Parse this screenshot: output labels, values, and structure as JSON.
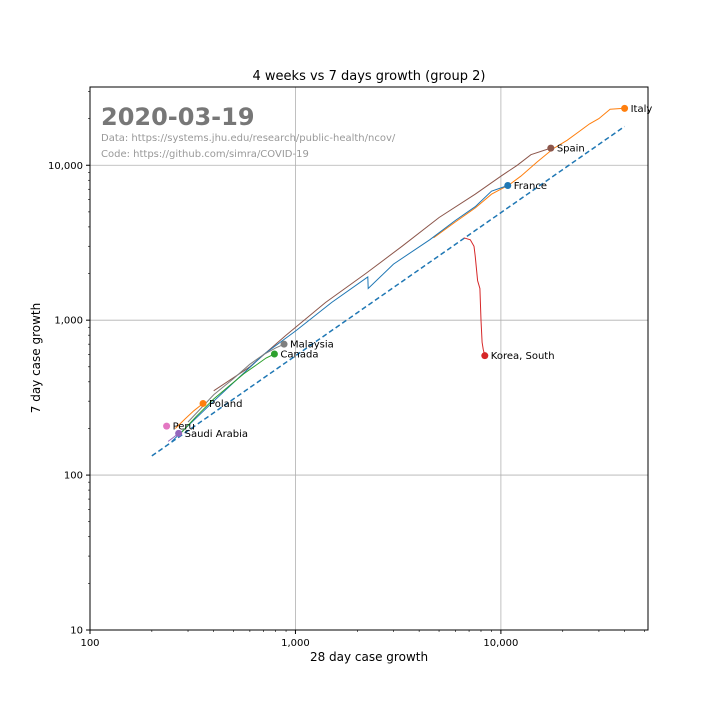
{
  "chart_data": {
    "type": "line",
    "title": "4 weeks vs 7 days growth (group 2)",
    "xlabel": "28 day case growth",
    "ylabel": "7 day case growth",
    "xscale": "log",
    "yscale": "log",
    "xlim": [
      100,
      52000
    ],
    "ylim": [
      10,
      32000
    ],
    "x_ticks": [
      100,
      1000,
      10000
    ],
    "x_tick_labels": [
      "100",
      "1,000",
      "10,000"
    ],
    "y_ticks": [
      10,
      100,
      1000,
      10000
    ],
    "y_tick_labels": [
      "10",
      "100",
      "1,000",
      "10,000"
    ],
    "grid": true,
    "legend": "none",
    "annotation_date": "2020-03-19",
    "annotation_lines": [
      "Data: https://systems.jhu.edu/research/public-health/ncov/",
      "Code: https://github.com/simra/COVID-19"
    ],
    "reference_line": {
      "style": "dashed",
      "color": "#1f77b4",
      "x": [
        200,
        40000
      ],
      "y": [
        133,
        17800
      ]
    },
    "series": [
      {
        "name": "Italy",
        "color": "#ff7f0e",
        "x": [
          4700,
          6000,
          7500,
          9000,
          11000,
          12500,
          15000,
          18000,
          21000,
          24000,
          27000,
          30000,
          34000,
          40000
        ],
        "y": [
          3400,
          4300,
          5300,
          6500,
          7500,
          8500,
          10500,
          12800,
          14500,
          16500,
          18500,
          20000,
          23000,
          23300
        ]
      },
      {
        "name": "Spain",
        "color": "#8c564b",
        "x": [
          400,
          600,
          900,
          1400,
          2200,
          3300,
          5000,
          7500,
          10000,
          12000,
          14000,
          17500
        ],
        "y": [
          350,
          500,
          800,
          1300,
          2000,
          3000,
          4600,
          6500,
          8500,
          10000,
          11700,
          12900
        ]
      },
      {
        "name": "France",
        "color": "#1f77b4",
        "x": [
          250,
          400,
          700,
          1000,
          1500,
          2250,
          2260,
          3000,
          4500,
          6000,
          7500,
          9000,
          10800
        ],
        "y": [
          165,
          300,
          600,
          850,
          1300,
          1900,
          1600,
          2300,
          3300,
          4400,
          5400,
          6800,
          7400
        ]
      },
      {
        "name": "Korea, South",
        "color": "#d62728",
        "x": [
          6600,
          7100,
          7400,
          7500,
          7700,
          7900,
          8000,
          8100,
          8200,
          8350
        ],
        "y": [
          3400,
          3300,
          3000,
          2600,
          1800,
          1600,
          1000,
          720,
          650,
          590
        ]
      },
      {
        "name": "Malaysia",
        "color": "#7f7f7f",
        "x": [
          300,
          400,
          500,
          600,
          700,
          800,
          880
        ],
        "y": [
          220,
          330,
          420,
          520,
          600,
          660,
          700
        ]
      },
      {
        "name": "Canada",
        "color": "#2ca02c",
        "x": [
          270,
          330,
          400,
          480,
          560,
          640,
          720,
          790
        ],
        "y": [
          180,
          240,
          310,
          380,
          450,
          510,
          570,
          605
        ]
      },
      {
        "name": "Poland",
        "color": "#ff7f0e",
        "x": [
          260,
          290,
          320,
          355
        ],
        "y": [
          200,
          230,
          260,
          290
        ]
      },
      {
        "name": "Peru",
        "color": "#e377c2",
        "x": [
          236
        ],
        "y": [
          207
        ]
      },
      {
        "name": "Saudi Arabia",
        "color": "#9467bd",
        "x": [
          240,
          255,
          270
        ],
        "y": [
          165,
          175,
          186
        ]
      }
    ]
  }
}
